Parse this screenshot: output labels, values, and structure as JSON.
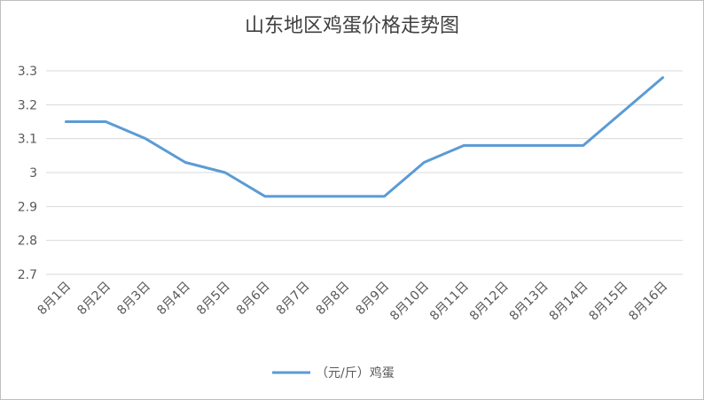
{
  "chart_data": {
    "type": "line",
    "title": "山东地区鸡蛋价格走势图",
    "categories": [
      "8月1日",
      "8月2日",
      "8月3日",
      "8月4日",
      "8月5日",
      "8月6日",
      "8月7日",
      "8月8日",
      "8月9日",
      "8月10日",
      "8月11日",
      "8月12日",
      "8月13日",
      "8月14日",
      "8月15日",
      "8月16日"
    ],
    "series": [
      {
        "name": "（元/斤）鸡蛋",
        "color": "#5b9bd5",
        "values": [
          3.15,
          3.15,
          3.1,
          3.03,
          3.0,
          2.93,
          2.93,
          2.93,
          2.93,
          3.03,
          3.08,
          3.08,
          3.08,
          3.08,
          3.18,
          3.28
        ]
      }
    ],
    "ylim": [
      2.7,
      3.3
    ],
    "yticks": [
      2.7,
      2.8,
      2.9,
      3,
      3.1,
      3.2,
      3.3
    ],
    "grid": true,
    "legend": "bottom"
  }
}
